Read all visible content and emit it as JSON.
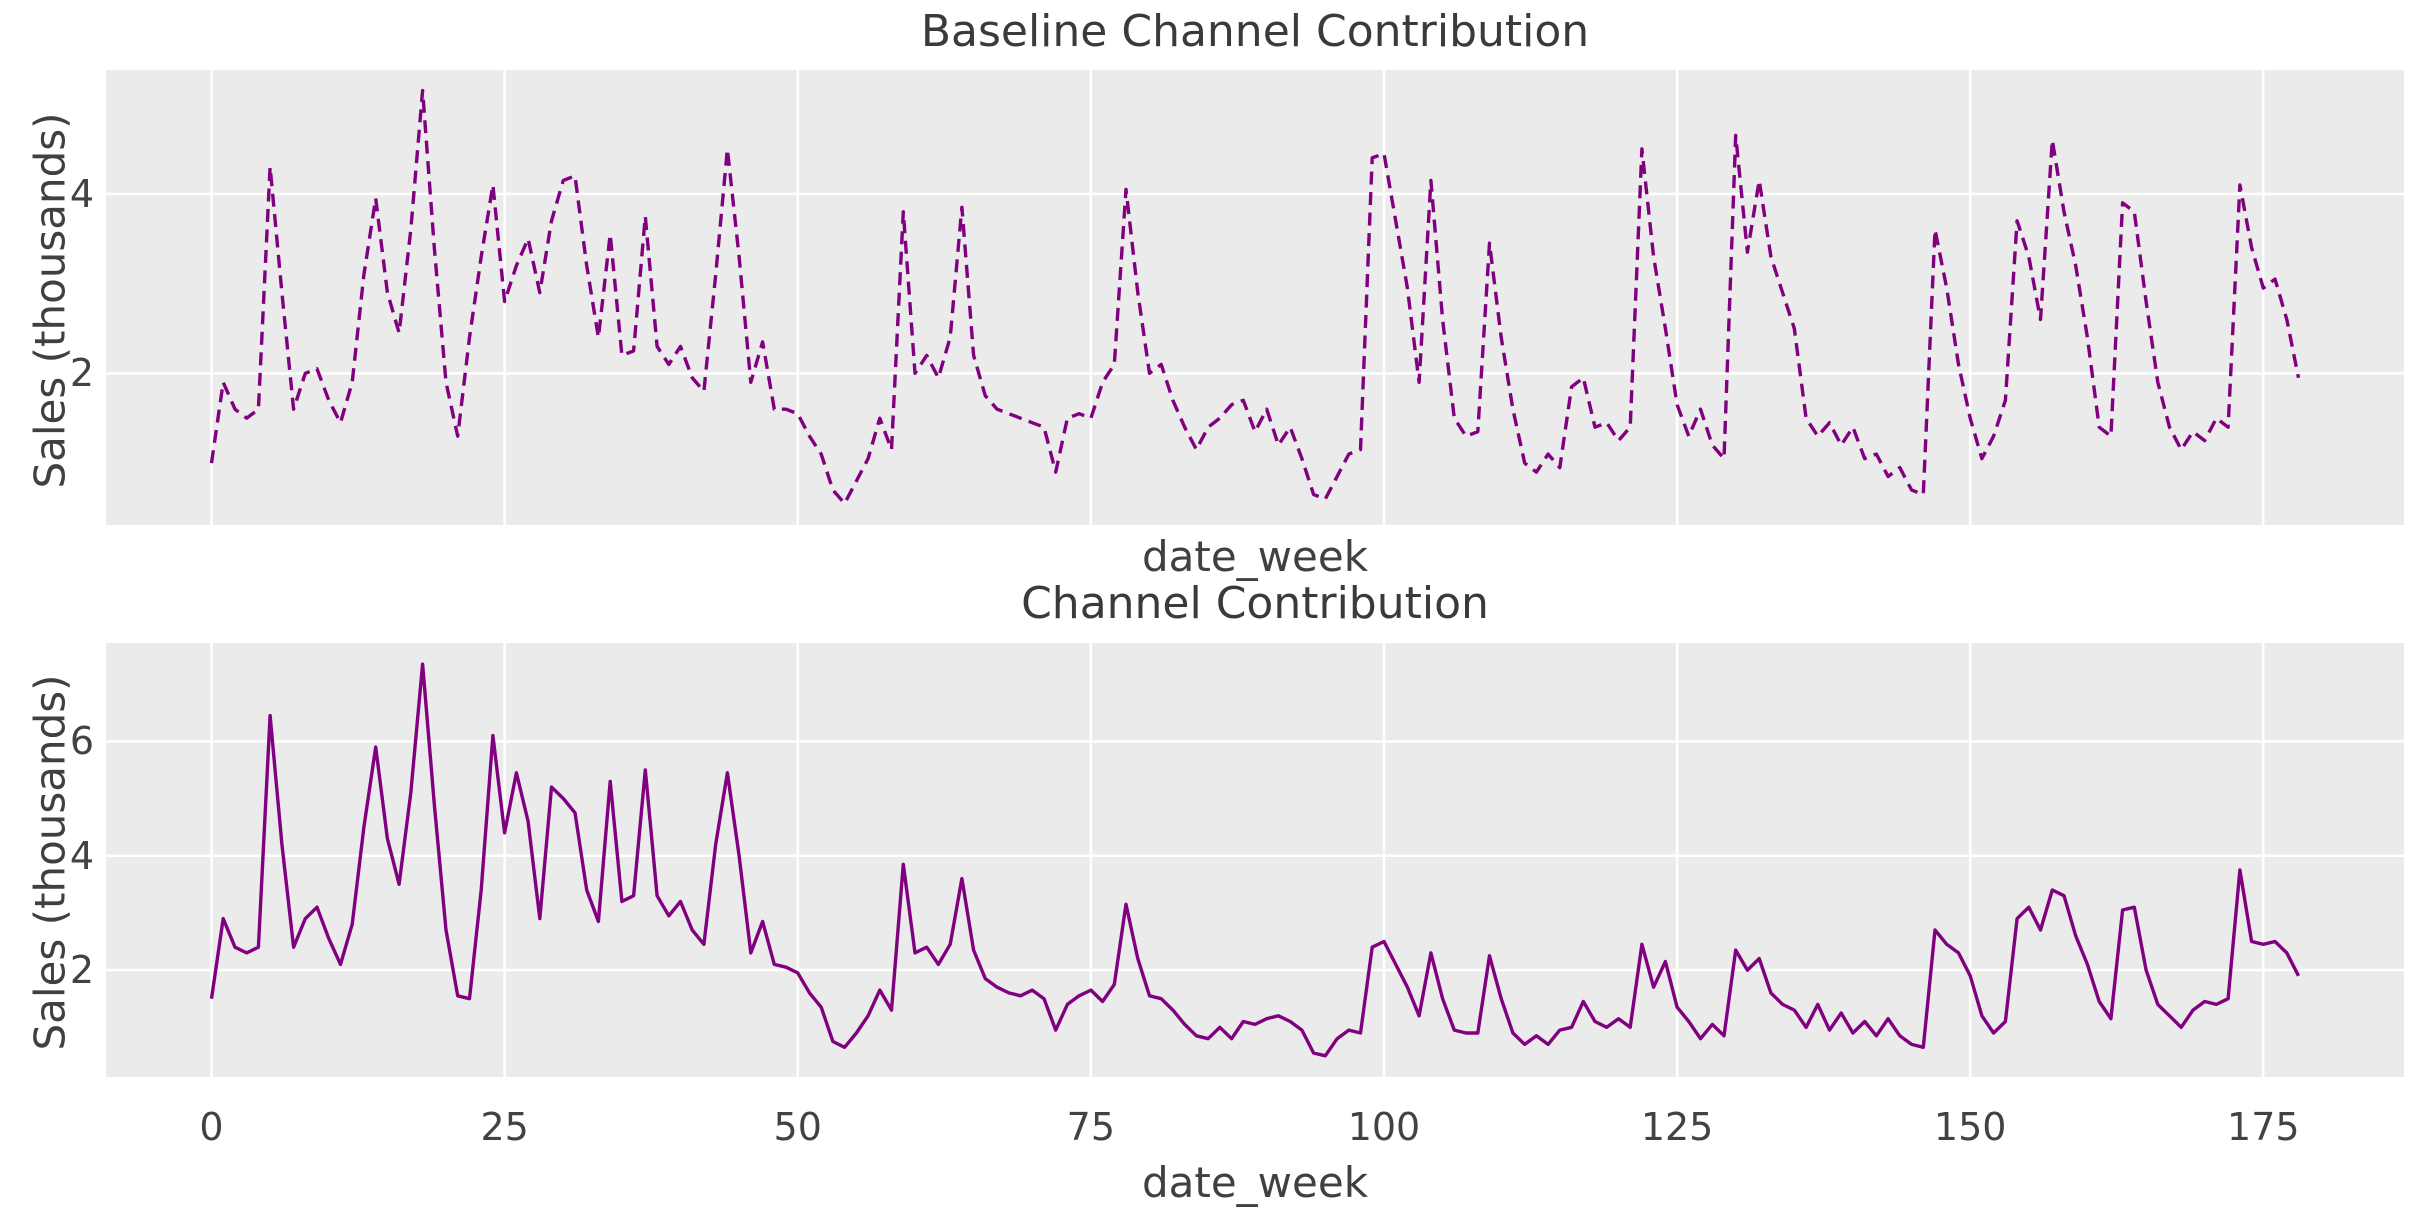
{
  "figure": {
    "background_color": "#ffffff",
    "panel_background_color": "#ebebeb",
    "grid_color": "#ffffff",
    "accent_color": "#800080",
    "text_color": "#404040"
  },
  "chart_data": [
    {
      "type": "line",
      "title": "Baseline Channel Contribution",
      "xlabel": "date_week",
      "ylabel": "Sales (thousands)",
      "legend": null,
      "grid": true,
      "line_color": "#800080",
      "line_style": "dashed",
      "x_start": 0,
      "x_step": 1,
      "xlim": [
        -9,
        187
      ],
      "ylim": [
        0.31,
        5.38
      ],
      "x_ticks": [
        0,
        25,
        50,
        75,
        100,
        125,
        150,
        175
      ],
      "x_tick_labels_visible": false,
      "y_ticks": [
        2,
        4
      ],
      "values": [
        1.0,
        1.9,
        1.6,
        1.5,
        1.6,
        4.3,
        2.9,
        1.6,
        2.0,
        2.05,
        1.7,
        1.45,
        1.9,
        3.1,
        3.95,
        2.9,
        2.45,
        3.6,
        5.15,
        3.4,
        1.9,
        1.3,
        2.4,
        3.3,
        4.1,
        2.8,
        3.2,
        3.5,
        2.9,
        3.7,
        4.15,
        4.2,
        3.2,
        2.4,
        3.55,
        2.2,
        2.25,
        3.75,
        2.3,
        2.1,
        2.3,
        1.95,
        1.8,
        3.1,
        4.5,
        3.3,
        1.9,
        2.35,
        1.6,
        1.6,
        1.55,
        1.3,
        1.1,
        0.7,
        0.55,
        0.8,
        1.05,
        1.5,
        1.15,
        3.8,
        2.0,
        2.2,
        1.95,
        2.4,
        3.85,
        2.2,
        1.75,
        1.6,
        1.55,
        1.5,
        1.45,
        1.4,
        0.9,
        1.5,
        1.55,
        1.5,
        1.9,
        2.1,
        4.05,
        2.9,
        2.0,
        2.1,
        1.7,
        1.4,
        1.15,
        1.4,
        1.5,
        1.65,
        1.7,
        1.35,
        1.6,
        1.2,
        1.4,
        1.05,
        0.65,
        0.6,
        0.85,
        1.1,
        1.15,
        4.4,
        4.45,
        3.7,
        2.95,
        1.9,
        4.15,
        2.6,
        1.5,
        1.3,
        1.35,
        3.45,
        2.4,
        1.6,
        1.0,
        0.9,
        1.1,
        0.95,
        1.85,
        1.95,
        1.4,
        1.45,
        1.25,
        1.4,
        4.5,
        3.3,
        2.5,
        1.65,
        1.3,
        1.6,
        1.2,
        1.05,
        4.65,
        3.35,
        4.15,
        3.3,
        2.9,
        2.5,
        1.5,
        1.3,
        1.45,
        1.2,
        1.4,
        1.05,
        1.1,
        0.85,
        0.95,
        0.7,
        0.65,
        3.6,
        2.95,
        2.1,
        1.5,
        1.05,
        1.3,
        1.7,
        3.7,
        3.3,
        2.6,
        4.6,
        3.8,
        3.2,
        2.4,
        1.4,
        1.3,
        3.9,
        3.8,
        2.8,
        1.9,
        1.4,
        1.15,
        1.35,
        1.25,
        1.5,
        1.4,
        4.1,
        3.4,
        2.95,
        3.05,
        2.6,
        1.95
      ]
    },
    {
      "type": "line",
      "title": "Channel Contribution",
      "xlabel": "date_week",
      "ylabel": "Sales (thousands)",
      "legend": null,
      "grid": true,
      "line_color": "#800080",
      "line_style": "solid",
      "x_start": 0,
      "x_step": 1,
      "xlim": [
        -9,
        187
      ],
      "ylim": [
        0.13,
        7.72
      ],
      "x_ticks": [
        0,
        25,
        50,
        75,
        100,
        125,
        150,
        175
      ],
      "x_tick_labels_visible": true,
      "y_ticks": [
        2,
        4,
        6
      ],
      "values": [
        1.5,
        2.9,
        2.4,
        2.3,
        2.4,
        6.45,
        4.2,
        2.4,
        2.9,
        3.1,
        2.55,
        2.1,
        2.8,
        4.5,
        5.9,
        4.3,
        3.5,
        5.1,
        7.35,
        4.9,
        2.7,
        1.55,
        1.5,
        3.4,
        6.1,
        4.4,
        5.45,
        4.6,
        2.9,
        5.2,
        5.0,
        4.75,
        3.4,
        2.85,
        5.3,
        3.2,
        3.3,
        5.5,
        3.3,
        2.95,
        3.2,
        2.7,
        2.45,
        4.2,
        5.45,
        4.0,
        2.3,
        2.85,
        2.1,
        2.05,
        1.95,
        1.6,
        1.35,
        0.75,
        0.65,
        0.9,
        1.2,
        1.65,
        1.3,
        3.85,
        2.3,
        2.4,
        2.1,
        2.45,
        3.6,
        2.35,
        1.85,
        1.7,
        1.6,
        1.55,
        1.65,
        1.5,
        0.95,
        1.4,
        1.55,
        1.65,
        1.45,
        1.75,
        3.15,
        2.2,
        1.55,
        1.5,
        1.3,
        1.05,
        0.85,
        0.8,
        1.0,
        0.8,
        1.1,
        1.05,
        1.15,
        1.2,
        1.1,
        0.95,
        0.55,
        0.5,
        0.8,
        0.95,
        0.9,
        2.4,
        2.5,
        2.1,
        1.7,
        1.2,
        2.3,
        1.5,
        0.95,
        0.9,
        0.9,
        2.25,
        1.5,
        0.9,
        0.7,
        0.85,
        0.7,
        0.95,
        1.0,
        1.45,
        1.1,
        1.0,
        1.15,
        1.0,
        2.45,
        1.7,
        2.15,
        1.35,
        1.1,
        0.8,
        1.05,
        0.85,
        2.35,
        2.0,
        2.2,
        1.6,
        1.4,
        1.3,
        1.0,
        1.4,
        0.95,
        1.25,
        0.9,
        1.1,
        0.85,
        1.15,
        0.85,
        0.7,
        0.65,
        2.7,
        2.45,
        2.3,
        1.9,
        1.2,
        0.9,
        1.1,
        2.9,
        3.1,
        2.7,
        3.4,
        3.3,
        2.6,
        2.1,
        1.45,
        1.15,
        3.05,
        3.1,
        2.0,
        1.4,
        1.2,
        1.0,
        1.3,
        1.45,
        1.4,
        1.5,
        3.75,
        2.5,
        2.45,
        2.5,
        2.3,
        1.9
      ]
    }
  ]
}
